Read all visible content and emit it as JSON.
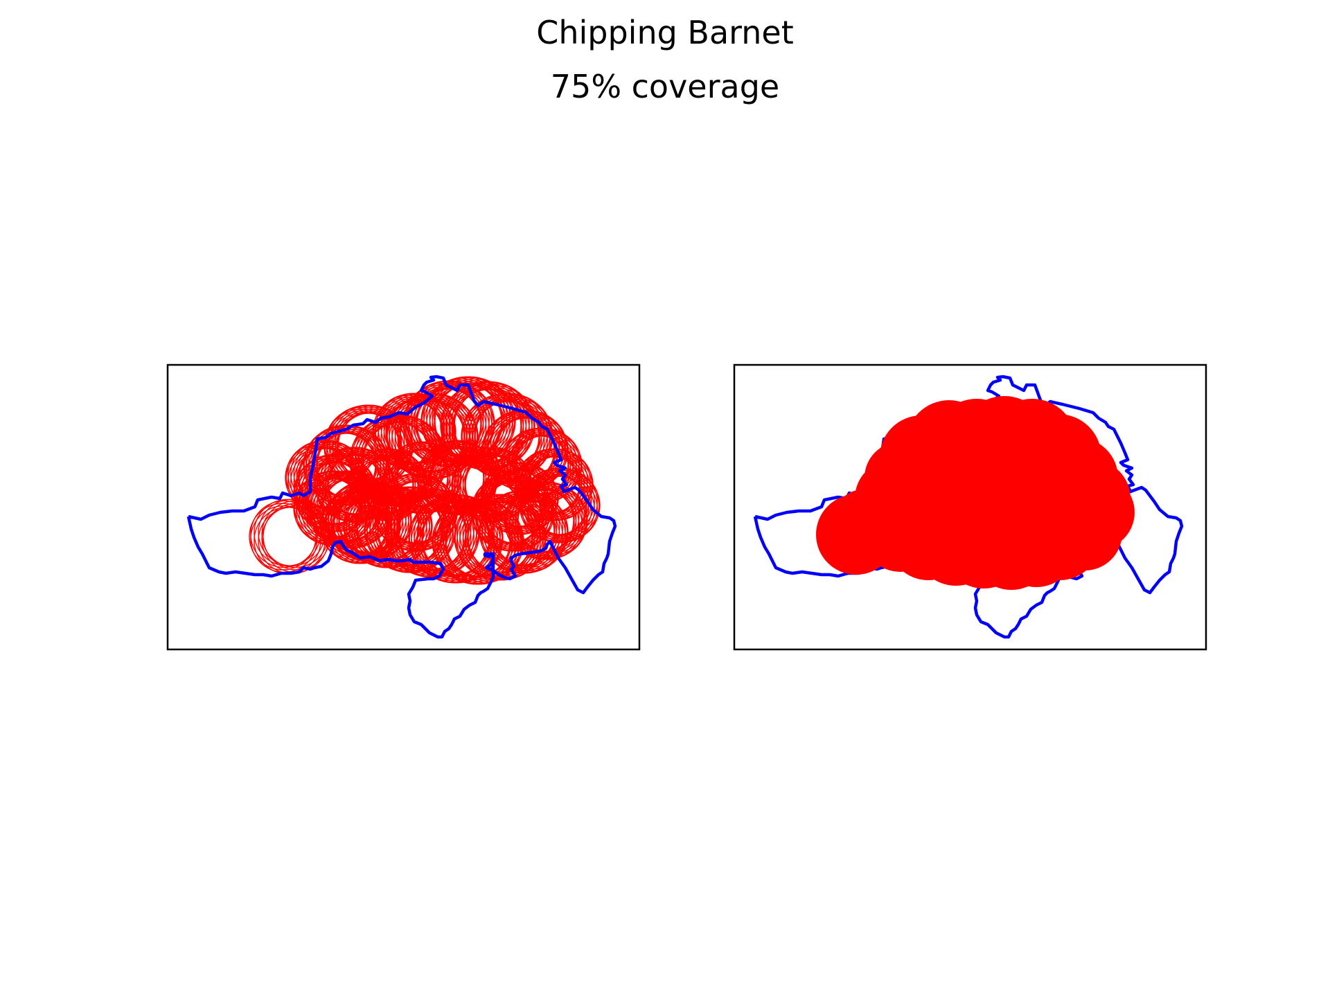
{
  "figure": {
    "title": "Chipping Barnet",
    "subtitle": "75% coverage"
  },
  "colors": {
    "boundary": "#0000ff",
    "coverage": "#ff0000",
    "frame": "#000000",
    "background": "#ffffff"
  },
  "panels": [
    {
      "name": "coverage-rings",
      "style": "outline"
    },
    {
      "name": "coverage-filled",
      "style": "filled"
    }
  ]
}
